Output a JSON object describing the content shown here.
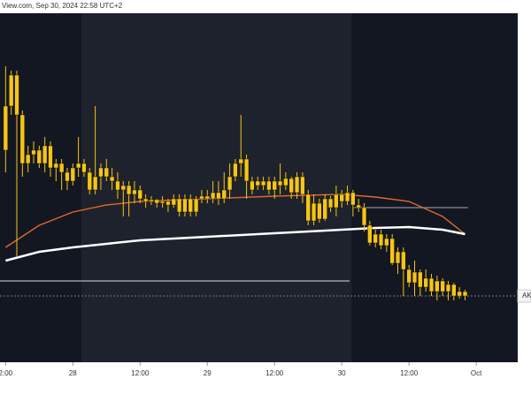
{
  "header": "View.com, Sep 30, 2024 22:58 UTC+2",
  "chart_data": {
    "type": "candlestick",
    "xlim": [
      -13,
      79.4
    ],
    "ylim": [
      0,
      395
    ],
    "xticks": [
      {
        "value": -12,
        "label": "2:00"
      },
      {
        "value": 0,
        "label": "28"
      },
      {
        "value": 12,
        "label": "12:00"
      },
      {
        "value": 24,
        "label": "29"
      },
      {
        "value": 36,
        "label": "12:00"
      },
      {
        "value": 48,
        "label": "30"
      },
      {
        "value": 60,
        "label": "12:00"
      },
      {
        "value": 72,
        "label": "Oct"
      }
    ],
    "color": "#f5c518",
    "x": [
      -12,
      -11,
      -10,
      -9,
      -8,
      -7,
      -6,
      -5,
      -4,
      -3,
      -2,
      -1,
      0,
      1,
      2,
      3,
      4,
      5,
      6,
      7,
      8,
      9,
      10,
      11,
      12,
      13,
      14,
      15,
      16,
      17,
      18,
      19,
      20,
      21,
      22,
      23,
      24,
      25,
      26,
      27,
      28,
      29,
      30,
      31,
      32,
      33,
      34,
      35,
      36,
      37,
      38,
      39,
      40,
      41,
      42,
      43,
      44,
      45,
      46,
      47,
      48,
      49,
      50,
      51,
      52,
      53,
      54,
      55,
      56,
      57,
      58,
      59,
      60,
      61,
      62,
      63,
      64,
      65,
      66,
      67,
      68,
      69,
      70
    ],
    "open": [
      240,
      290,
      325,
      280,
      225,
      235,
      240,
      225,
      245,
      220,
      225,
      215,
      205,
      220,
      225,
      215,
      195,
      210,
      220,
      210,
      205,
      195,
      200,
      190,
      195,
      185,
      182,
      184,
      180,
      182,
      178,
      185,
      170,
      185,
      170,
      185,
      188,
      185,
      192,
      185,
      195,
      210,
      225,
      230,
      205,
      205,
      200,
      205,
      195,
      205,
      200,
      208,
      192,
      210,
      190,
      160,
      180,
      162,
      185,
      175,
      190,
      182,
      192,
      178,
      175,
      155,
      135,
      145,
      132,
      140,
      112,
      125,
      105,
      90,
      102,
      85,
      95,
      80,
      92,
      80,
      88,
      75,
      80
    ],
    "high": [
      335,
      330,
      330,
      285,
      245,
      250,
      245,
      255,
      250,
      230,
      230,
      220,
      225,
      255,
      230,
      220,
      290,
      225,
      230,
      220,
      215,
      205,
      205,
      205,
      200,
      190,
      188,
      185,
      188,
      185,
      190,
      190,
      190,
      190,
      188,
      195,
      195,
      205,
      205,
      215,
      225,
      230,
      280,
      235,
      210,
      210,
      210,
      210,
      210,
      225,
      215,
      210,
      215,
      215,
      195,
      190,
      185,
      190,
      188,
      200,
      195,
      200,
      195,
      185,
      180,
      160,
      150,
      150,
      145,
      145,
      130,
      130,
      110,
      115,
      105,
      105,
      100,
      98,
      95,
      92,
      90,
      85,
      82
    ],
    "low": [
      215,
      280,
      120,
      210,
      215,
      225,
      220,
      215,
      210,
      205,
      195,
      195,
      200,
      210,
      210,
      190,
      190,
      195,
      205,
      195,
      185,
      165,
      165,
      180,
      180,
      175,
      178,
      175,
      175,
      170,
      175,
      165,
      165,
      165,
      165,
      180,
      180,
      180,
      178,
      180,
      185,
      205,
      210,
      185,
      190,
      195,
      195,
      190,
      185,
      190,
      195,
      185,
      185,
      180,
      155,
      155,
      158,
      160,
      170,
      165,
      175,
      178,
      165,
      170,
      148,
      132,
      130,
      128,
      125,
      110,
      100,
      75,
      85,
      75,
      75,
      80,
      75,
      70,
      75,
      70,
      70,
      72,
      70
    ],
    "close": [
      290,
      325,
      280,
      225,
      235,
      240,
      225,
      245,
      220,
      225,
      215,
      205,
      220,
      225,
      215,
      195,
      210,
      220,
      210,
      205,
      195,
      200,
      190,
      195,
      185,
      182,
      184,
      180,
      182,
      178,
      185,
      170,
      185,
      170,
      185,
      188,
      185,
      192,
      185,
      195,
      210,
      225,
      230,
      205,
      195,
      200,
      205,
      195,
      205,
      200,
      208,
      192,
      210,
      190,
      160,
      180,
      162,
      185,
      175,
      190,
      182,
      192,
      178,
      175,
      155,
      135,
      145,
      132,
      140,
      112,
      125,
      105,
      90,
      102,
      85,
      95,
      80,
      92,
      80,
      88,
      75,
      80,
      75
    ],
    "lines": [
      {
        "color": "#e0692a",
        "x": [
          -12,
          -6,
          0,
          6,
          12,
          24,
          36,
          48,
          54,
          60,
          66,
          70
        ],
        "values": [
          130,
          155,
          170,
          178,
          182,
          185,
          188,
          190,
          187,
          182,
          165,
          145
        ]
      },
      {
        "color": "#ffffff",
        "x": [
          -12,
          -6,
          0,
          6,
          12,
          24,
          36,
          48,
          54,
          60,
          66,
          70
        ],
        "values": [
          115,
          125,
          130,
          134,
          138,
          142,
          146,
          150,
          152,
          153,
          150,
          145
        ]
      }
    ],
    "levels": [
      {
        "value": 92,
        "x": [
          -13,
          49.4
        ],
        "color": "#b8aed0",
        "dash": false
      },
      {
        "value": 175,
        "x": [
          50.2,
          70.5
        ],
        "color": "#8a8a9a",
        "dash": false
      },
      {
        "value": 75,
        "x": [
          -13,
          79.4
        ],
        "color": "#6a6a55",
        "dash": true
      }
    ],
    "price_label": "AK"
  }
}
